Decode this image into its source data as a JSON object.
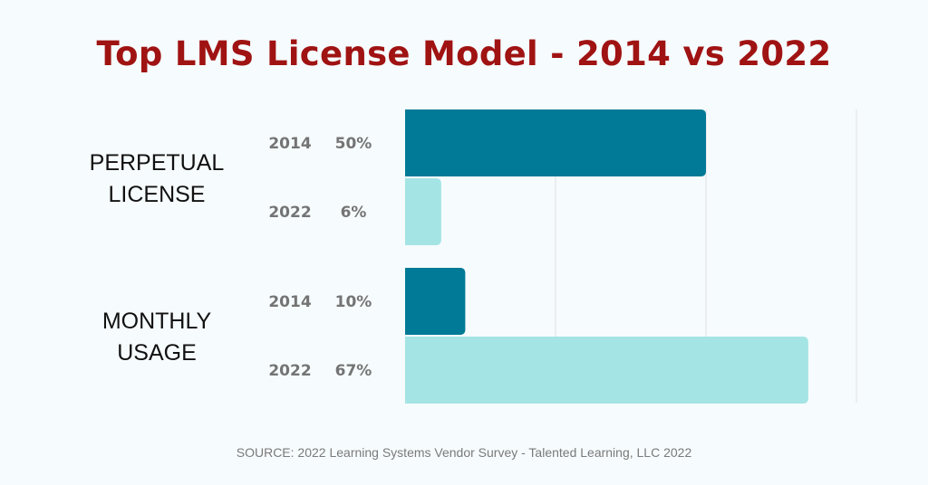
{
  "title": "Top LMS License Model - 2014 vs 2022",
  "source": "SOURCE:  2022 Learning Systems Vendor Survey - Talented Learning, LLC 2022",
  "chart_data": {
    "type": "bar",
    "orientation": "horizontal",
    "groups": [
      {
        "label_lines": [
          "PERPETUAL",
          "LICENSE"
        ],
        "bars": [
          {
            "year": "2014",
            "value": 50,
            "label": "50%",
            "color": "#007a96"
          },
          {
            "year": "2022",
            "value": 6,
            "label": "6%",
            "color": "#a4e4e4"
          }
        ]
      },
      {
        "label_lines": [
          "MONTHLY",
          "USAGE"
        ],
        "bars": [
          {
            "year": "2014",
            "value": 10,
            "label": "10%",
            "color": "#007a96"
          },
          {
            "year": "2022",
            "value": 67,
            "label": "67%",
            "color": "#a4e4e4"
          }
        ]
      }
    ],
    "xlim": [
      0,
      75
    ],
    "grid": true,
    "gridlines": [
      25,
      50,
      75
    ],
    "grid_color": "#dde2e5"
  }
}
